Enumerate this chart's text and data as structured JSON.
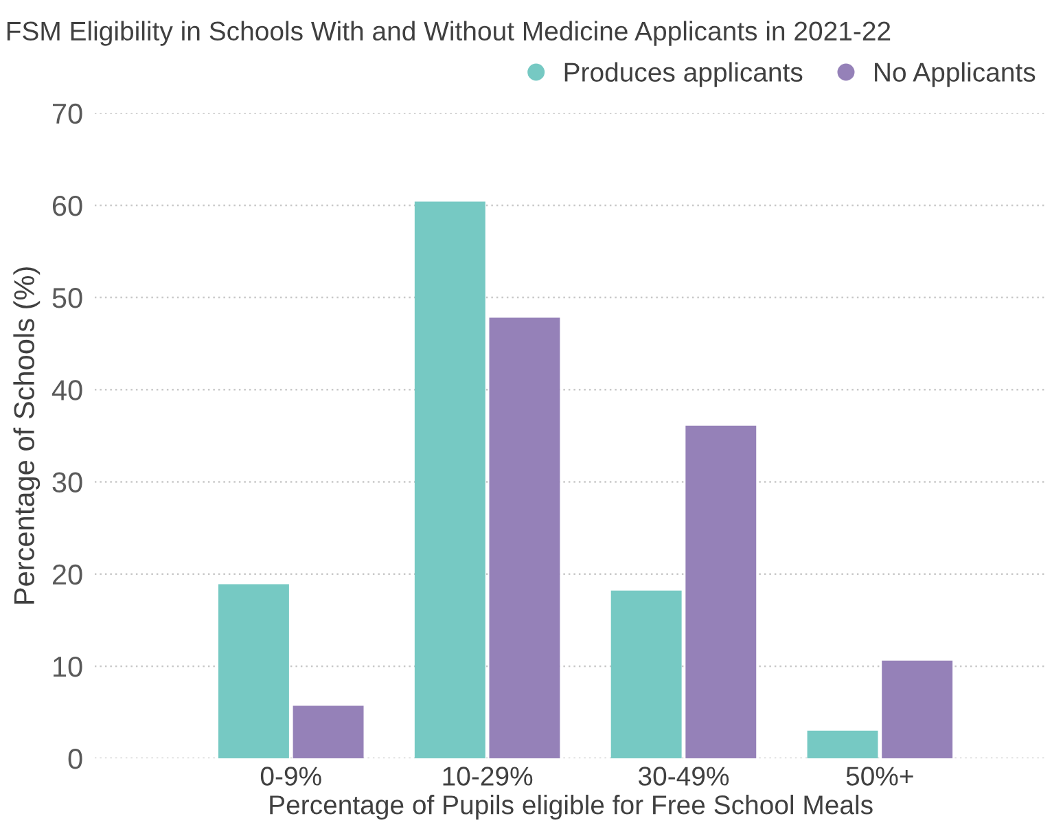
{
  "chart_data": {
    "type": "bar",
    "title": "FSM Eligibility in Schools With and Without Medicine Applicants in 2021-22",
    "xlabel": "Percentage of Pupils eligible for Free School Meals",
    "ylabel": "Percentage of Schools (%)",
    "categories": [
      "0-9%",
      "10-29%",
      "30-49%",
      "50%+"
    ],
    "series": [
      {
        "name": "Produces applicants",
        "color": "#76c9c3",
        "values": [
          18.9,
          60.4,
          18.2,
          3.0
        ]
      },
      {
        "name": "No Applicants",
        "color": "#9581b8",
        "values": [
          5.7,
          47.8,
          36.1,
          10.6
        ]
      }
    ],
    "ylim": [
      0,
      70
    ],
    "yticks": [
      0,
      10,
      20,
      30,
      40,
      50,
      60,
      70
    ],
    "grid": "y",
    "legend": "top right",
    "marker": "circle"
  }
}
